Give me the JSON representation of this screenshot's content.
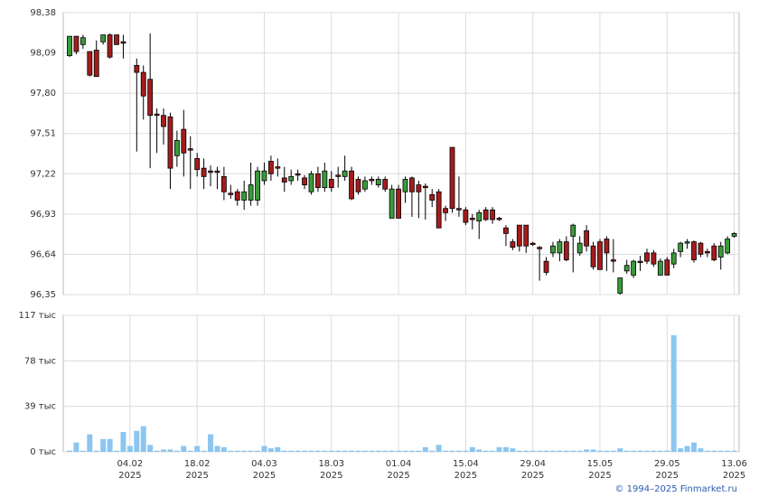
{
  "chart_data": {
    "type": "candlestick",
    "open": [
      98.07,
      98.21,
      98.15,
      98.1,
      98.11,
      98.17,
      98.22,
      98.22,
      98.17,
      null,
      98.0,
      97.95,
      97.9,
      97.65,
      97.64,
      97.63,
      97.35,
      97.54,
      97.4,
      97.33,
      97.26,
      97.24,
      97.24,
      97.2,
      97.08,
      97.09,
      97.03,
      97.03,
      97.03,
      97.17,
      97.31,
      97.27,
      97.19,
      97.17,
      97.22,
      97.19,
      97.09,
      97.22,
      97.12,
      97.18,
      97.21,
      97.2,
      97.24,
      97.18,
      97.11,
      97.18,
      97.14,
      97.18,
      96.9,
      97.11,
      97.09,
      97.19,
      97.14,
      97.13,
      97.07,
      97.09,
      96.97,
      97.41,
      96.97,
      96.96,
      96.9,
      96.88,
      96.96,
      96.96,
      96.9,
      96.83,
      96.73,
      96.85,
      96.85,
      96.72,
      96.69,
      96.59,
      96.65,
      96.65,
      96.73,
      96.77,
      96.65,
      96.81,
      96.7,
      96.73,
      96.75,
      96.6,
      96.36,
      96.52,
      96.49,
      96.59,
      96.65,
      96.65,
      96.49,
      96.6,
      96.57,
      96.66,
      96.72,
      96.73,
      96.72,
      96.66,
      96.7,
      96.62,
      96.65,
      96.77
    ],
    "high": [
      98.21,
      98.21,
      98.22,
      98.1,
      98.18,
      98.22,
      98.23,
      98.22,
      98.22,
      null,
      98.05,
      98.0,
      98.23,
      97.69,
      97.69,
      97.66,
      97.53,
      97.68,
      97.49,
      97.37,
      97.33,
      97.28,
      97.27,
      97.27,
      97.14,
      97.11,
      97.17,
      97.3,
      97.27,
      97.3,
      97.35,
      97.33,
      97.27,
      97.25,
      97.25,
      97.21,
      97.24,
      97.27,
      97.3,
      97.24,
      97.27,
      97.35,
      97.27,
      97.2,
      97.2,
      97.2,
      97.2,
      97.2,
      97.14,
      97.14,
      97.2,
      97.2,
      97.17,
      97.15,
      97.11,
      97.11,
      96.99,
      97.41,
      97.2,
      96.98,
      96.93,
      96.96,
      96.98,
      96.98,
      96.91,
      96.85,
      96.75,
      96.85,
      96.85,
      96.73,
      96.7,
      96.62,
      96.73,
      96.75,
      96.77,
      96.86,
      96.77,
      96.85,
      96.73,
      96.75,
      96.77,
      96.75,
      96.47,
      96.6,
      96.6,
      96.63,
      96.68,
      96.67,
      96.61,
      96.62,
      96.68,
      96.73,
      96.75,
      96.74,
      96.73,
      96.68,
      96.72,
      96.73,
      96.77,
      96.8
    ],
    "low": [
      98.06,
      98.08,
      98.12,
      97.92,
      97.92,
      98.15,
      98.05,
      98.15,
      98.05,
      null,
      97.38,
      97.61,
      97.26,
      97.37,
      97.43,
      97.11,
      97.27,
      97.2,
      97.11,
      97.2,
      97.11,
      97.13,
      97.11,
      97.03,
      97.04,
      96.99,
      96.96,
      96.99,
      96.99,
      97.14,
      97.17,
      97.2,
      97.09,
      97.14,
      97.17,
      97.11,
      97.07,
      97.09,
      97.09,
      97.09,
      97.12,
      97.17,
      97.03,
      97.07,
      97.09,
      97.14,
      97.12,
      97.09,
      96.9,
      96.9,
      97.01,
      96.91,
      96.9,
      96.89,
      96.98,
      96.83,
      96.88,
      96.94,
      96.91,
      96.85,
      96.82,
      96.75,
      96.88,
      96.86,
      96.88,
      96.7,
      96.67,
      96.66,
      96.65,
      96.7,
      96.45,
      96.49,
      96.62,
      96.59,
      96.59,
      96.51,
      96.63,
      96.66,
      96.53,
      96.53,
      96.52,
      96.51,
      96.35,
      96.5,
      96.47,
      96.52,
      96.57,
      96.55,
      96.49,
      96.49,
      96.54,
      96.62,
      96.68,
      96.58,
      96.62,
      96.62,
      96.59,
      96.53,
      96.64,
      96.76
    ],
    "close": [
      98.21,
      98.1,
      98.2,
      97.93,
      97.92,
      98.22,
      98.06,
      98.15,
      98.16,
      null,
      97.95,
      97.78,
      97.64,
      97.64,
      97.56,
      97.26,
      97.46,
      97.37,
      97.39,
      97.25,
      97.2,
      97.23,
      97.23,
      97.09,
      97.07,
      97.03,
      97.09,
      97.14,
      97.24,
      97.24,
      97.22,
      97.26,
      97.16,
      97.2,
      97.21,
      97.14,
      97.22,
      97.12,
      97.24,
      97.12,
      97.2,
      97.24,
      97.04,
      97.09,
      97.17,
      97.17,
      97.18,
      97.11,
      97.11,
      96.9,
      97.18,
      97.09,
      97.09,
      97.12,
      97.03,
      96.83,
      96.94,
      96.97,
      96.96,
      96.87,
      96.89,
      96.94,
      96.89,
      96.89,
      96.89,
      96.79,
      96.69,
      96.7,
      96.7,
      96.71,
      96.68,
      96.51,
      96.7,
      96.73,
      96.6,
      96.85,
      96.72,
      96.7,
      96.55,
      96.53,
      96.65,
      96.59,
      96.47,
      96.56,
      96.59,
      96.58,
      96.59,
      96.57,
      96.59,
      96.49,
      96.65,
      96.72,
      96.73,
      96.6,
      96.64,
      96.65,
      96.6,
      96.7,
      96.75,
      96.79
    ],
    "volume": [
      1,
      8,
      1,
      15,
      1,
      11,
      11,
      1,
      17,
      5,
      18,
      22,
      6,
      1,
      2,
      2,
      1,
      5,
      1,
      5,
      1,
      15,
      5,
      4,
      1,
      1,
      1,
      1,
      1,
      5,
      3,
      4,
      1,
      1,
      1,
      1,
      1,
      1,
      1,
      1,
      1,
      1,
      1,
      1,
      1,
      1,
      1,
      1,
      1,
      1,
      1,
      1,
      1,
      4,
      1,
      6,
      1,
      1,
      1,
      1,
      4,
      2,
      1,
      1,
      4,
      4,
      3,
      1,
      1,
      1,
      1,
      1,
      1,
      1,
      1,
      1,
      1,
      2,
      2,
      1,
      1,
      1,
      3,
      1,
      1,
      1,
      1,
      1,
      1,
      1,
      100,
      3,
      5,
      8,
      3,
      1,
      1,
      1,
      1,
      1
    ],
    "categories": [
      null,
      null,
      null,
      null,
      null,
      null,
      null,
      null,
      null,
      {
        "day": "04.02",
        "year": "2025"
      },
      null,
      null,
      null,
      null,
      null,
      null,
      null,
      null,
      null,
      {
        "day": "18.02",
        "year": "2025"
      },
      null,
      null,
      null,
      null,
      null,
      null,
      null,
      null,
      null,
      {
        "day": "04.03",
        "year": "2025"
      },
      null,
      null,
      null,
      null,
      null,
      null,
      null,
      null,
      null,
      {
        "day": "18.03",
        "year": "2025"
      },
      null,
      null,
      null,
      null,
      null,
      null,
      null,
      null,
      null,
      {
        "day": "01.04",
        "year": "2025"
      },
      null,
      null,
      null,
      null,
      null,
      null,
      null,
      null,
      null,
      {
        "day": "15.04",
        "year": "2025"
      },
      null,
      null,
      null,
      null,
      null,
      null,
      null,
      null,
      null,
      {
        "day": "29.04",
        "year": "2025"
      },
      null,
      null,
      null,
      null,
      null,
      null,
      null,
      null,
      null,
      {
        "day": "15.05",
        "year": "2025"
      },
      null,
      null,
      null,
      null,
      null,
      null,
      null,
      null,
      null,
      {
        "day": "29.05",
        "year": "2025"
      },
      null,
      null,
      null,
      null,
      null,
      null,
      null,
      null,
      null,
      {
        "day": "13.06",
        "year": "2025"
      }
    ],
    "ylim": [
      96.35,
      98.38
    ],
    "yticks": [
      {
        "value": 96.35,
        "label": "96,35"
      },
      {
        "value": 96.64,
        "label": "96,64"
      },
      {
        "value": 96.93,
        "label": "96,93"
      },
      {
        "value": 97.22,
        "label": "97,22"
      },
      {
        "value": 97.51,
        "label": "97,51"
      },
      {
        "value": 97.8,
        "label": "97,80"
      },
      {
        "value": 98.09,
        "label": "98,09"
      },
      {
        "value": 98.38,
        "label": "98,38"
      }
    ],
    "volume_ylim": [
      0,
      117
    ],
    "volume_yticks": [
      {
        "value": 0,
        "label": "0 тыс"
      },
      {
        "value": 39,
        "label": "39 тыс"
      },
      {
        "value": 78,
        "label": "78 тыс"
      },
      {
        "value": 117,
        "label": "117 тыс"
      }
    ],
    "up_color": "#3a9a3a",
    "down_color": "#a41c1c",
    "volume_color": "#8cc6f0",
    "grid": true,
    "credit": "© 1994–2025 Finmarket.ru"
  }
}
